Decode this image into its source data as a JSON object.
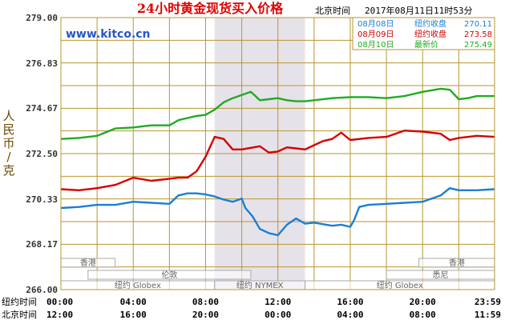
{
  "header": {
    "title": "24小时黄金现货买入价格",
    "time_label": "北京时间",
    "datetime": "2017年08月11日11时53分",
    "watermark": "www.kitco.cn"
  },
  "y_axis_label": "人民币/克",
  "legend": [
    {
      "name": "08月08日",
      "label": "纽约收盘",
      "value": "270.11",
      "color": "#1a7fd4"
    },
    {
      "name": "08月09日",
      "label": "纽约收盘",
      "value": "273.58",
      "color": "#d60000"
    },
    {
      "name": "08月10日",
      "label": "最新价",
      "value": "275.49",
      "color": "#22aa22"
    }
  ],
  "x_axis_rows": [
    {
      "label": "纽约时间",
      "ticks": [
        "00:00",
        "04:00",
        "08:00",
        "12:00",
        "16:00",
        "20:00",
        "23:59"
      ]
    },
    {
      "label": "北京时间",
      "ticks": [
        "12:00",
        "16:00",
        "20:00",
        "00:00",
        "04:00",
        "08:00",
        "11:59"
      ]
    }
  ],
  "sessions": [
    {
      "name": "香港",
      "row": 1,
      "start": 0.0,
      "end": 3.0
    },
    {
      "name": "香港",
      "row": 1,
      "start": 19.8,
      "end": 23.98
    },
    {
      "name": "伦敦",
      "row": 2,
      "start": 1.5,
      "end": 10.5
    },
    {
      "name": "悉尼",
      "row": 2,
      "start": 18.0,
      "end": 23.98
    },
    {
      "name": "纽约 Globex",
      "row": 3,
      "start": 0.0,
      "end": 8.5
    },
    {
      "name": "纽约 NYMEX",
      "row": 3,
      "start": 8.5,
      "end": 13.5
    },
    {
      "name": "纽约 Globex",
      "row": 3,
      "start": 13.5,
      "end": 23.98
    }
  ],
  "shaded_range": [
    8.5,
    13.5
  ],
  "chart_data": {
    "type": "line",
    "title": "24小时黄金现货买入价格",
    "xlabel": "纽约时间 / 北京时间",
    "ylabel": "人民币/克",
    "xlim": [
      0,
      23.98
    ],
    "ylim": [
      266.0,
      279.0
    ],
    "yticks": [
      "266.00",
      "268.17",
      "270.33",
      "272.50",
      "274.67",
      "276.83",
      "279.00"
    ],
    "grid": true,
    "legend_position": "top-right",
    "series": [
      {
        "name": "08月08日",
        "color": "#1a7fd4",
        "x": [
          0,
          1,
          2,
          3,
          4,
          5,
          6,
          6.5,
          7,
          7.5,
          8,
          8.5,
          9,
          9.5,
          10,
          10.2,
          10.6,
          11,
          11.5,
          12,
          12.5,
          13,
          13.5,
          14,
          15,
          15.5,
          16,
          16.2,
          16.5,
          17,
          18,
          19,
          20,
          20.5,
          21,
          21.5,
          22,
          23,
          23.98
        ],
        "values": [
          269.9,
          269.95,
          270.05,
          270.05,
          270.2,
          270.15,
          270.1,
          270.5,
          270.6,
          270.6,
          270.55,
          270.45,
          270.3,
          270.2,
          270.35,
          269.9,
          269.5,
          268.9,
          268.7,
          268.6,
          269.1,
          269.4,
          269.15,
          269.2,
          269.05,
          269.1,
          269.0,
          269.3,
          269.95,
          270.05,
          270.1,
          270.15,
          270.2,
          270.35,
          270.5,
          270.85,
          270.75,
          270.75,
          270.8
        ]
      },
      {
        "name": "08月09日",
        "color": "#d60000",
        "x": [
          0,
          1,
          2,
          3,
          4,
          5,
          6,
          6.5,
          7,
          7.5,
          8,
          8.5,
          9,
          9.5,
          10,
          11,
          11.5,
          12,
          12.5,
          13,
          13.5,
          14,
          14.5,
          15,
          15.5,
          16,
          17,
          18,
          19,
          20,
          21,
          21.5,
          22,
          23,
          23.98
        ],
        "values": [
          270.8,
          270.75,
          270.85,
          271.0,
          271.35,
          271.2,
          271.3,
          271.35,
          271.35,
          271.65,
          272.35,
          273.3,
          273.2,
          272.7,
          272.7,
          272.85,
          272.55,
          272.6,
          272.8,
          272.75,
          272.7,
          272.9,
          273.1,
          273.2,
          273.5,
          273.15,
          273.25,
          273.3,
          273.6,
          273.55,
          273.45,
          273.15,
          273.25,
          273.35,
          273.3
        ]
      },
      {
        "name": "08月10日",
        "color": "#22aa22",
        "x": [
          0,
          1,
          2,
          3,
          4,
          5,
          6,
          6.5,
          7,
          7.5,
          8,
          8.5,
          9,
          9.5,
          10,
          10.5,
          11,
          11.5,
          12,
          12.5,
          13,
          13.5,
          14,
          15,
          16,
          17,
          18,
          19,
          20,
          21,
          21.5,
          22,
          22.5,
          23,
          23.98
        ],
        "values": [
          273.2,
          273.25,
          273.35,
          273.7,
          273.75,
          273.85,
          273.85,
          274.1,
          274.2,
          274.3,
          274.35,
          274.6,
          274.95,
          275.15,
          275.3,
          275.45,
          275.05,
          275.1,
          275.15,
          275.05,
          275.0,
          275.0,
          275.05,
          275.15,
          275.2,
          275.2,
          275.15,
          275.25,
          275.45,
          275.6,
          275.55,
          275.1,
          275.15,
          275.25,
          275.25
        ]
      }
    ]
  }
}
